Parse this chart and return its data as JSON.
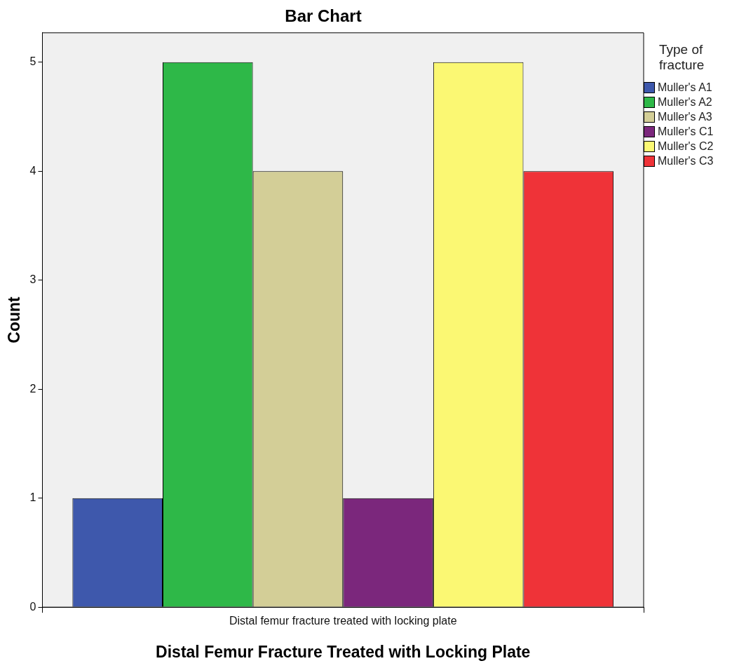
{
  "chart_data": {
    "type": "bar",
    "title": "Bar Chart",
    "xlabel": "Distal Femur Fracture Treated with Locking Plate",
    "ylabel": "Count",
    "legend_title": "Type of fracture",
    "categories": [
      "Distal femur fracture treated with locking plate"
    ],
    "series": [
      {
        "name": "Muller's A1",
        "color": "#3e58ac",
        "values": [
          1
        ]
      },
      {
        "name": "Muller's A2",
        "color": "#2eb848",
        "values": [
          5
        ]
      },
      {
        "name": "Muller's A3",
        "color": "#d3ce97",
        "values": [
          4
        ]
      },
      {
        "name": "Muller's C1",
        "color": "#7b277c",
        "values": [
          1
        ]
      },
      {
        "name": "Muller's C2",
        "color": "#fbf873",
        "values": [
          5
        ]
      },
      {
        "name": "Muller's C3",
        "color": "#ef3338",
        "values": [
          4
        ]
      }
    ],
    "ylim": [
      0,
      5.27
    ],
    "yticks": [
      0,
      1,
      2,
      3,
      4,
      5
    ],
    "grid": false,
    "legend": "top right"
  }
}
